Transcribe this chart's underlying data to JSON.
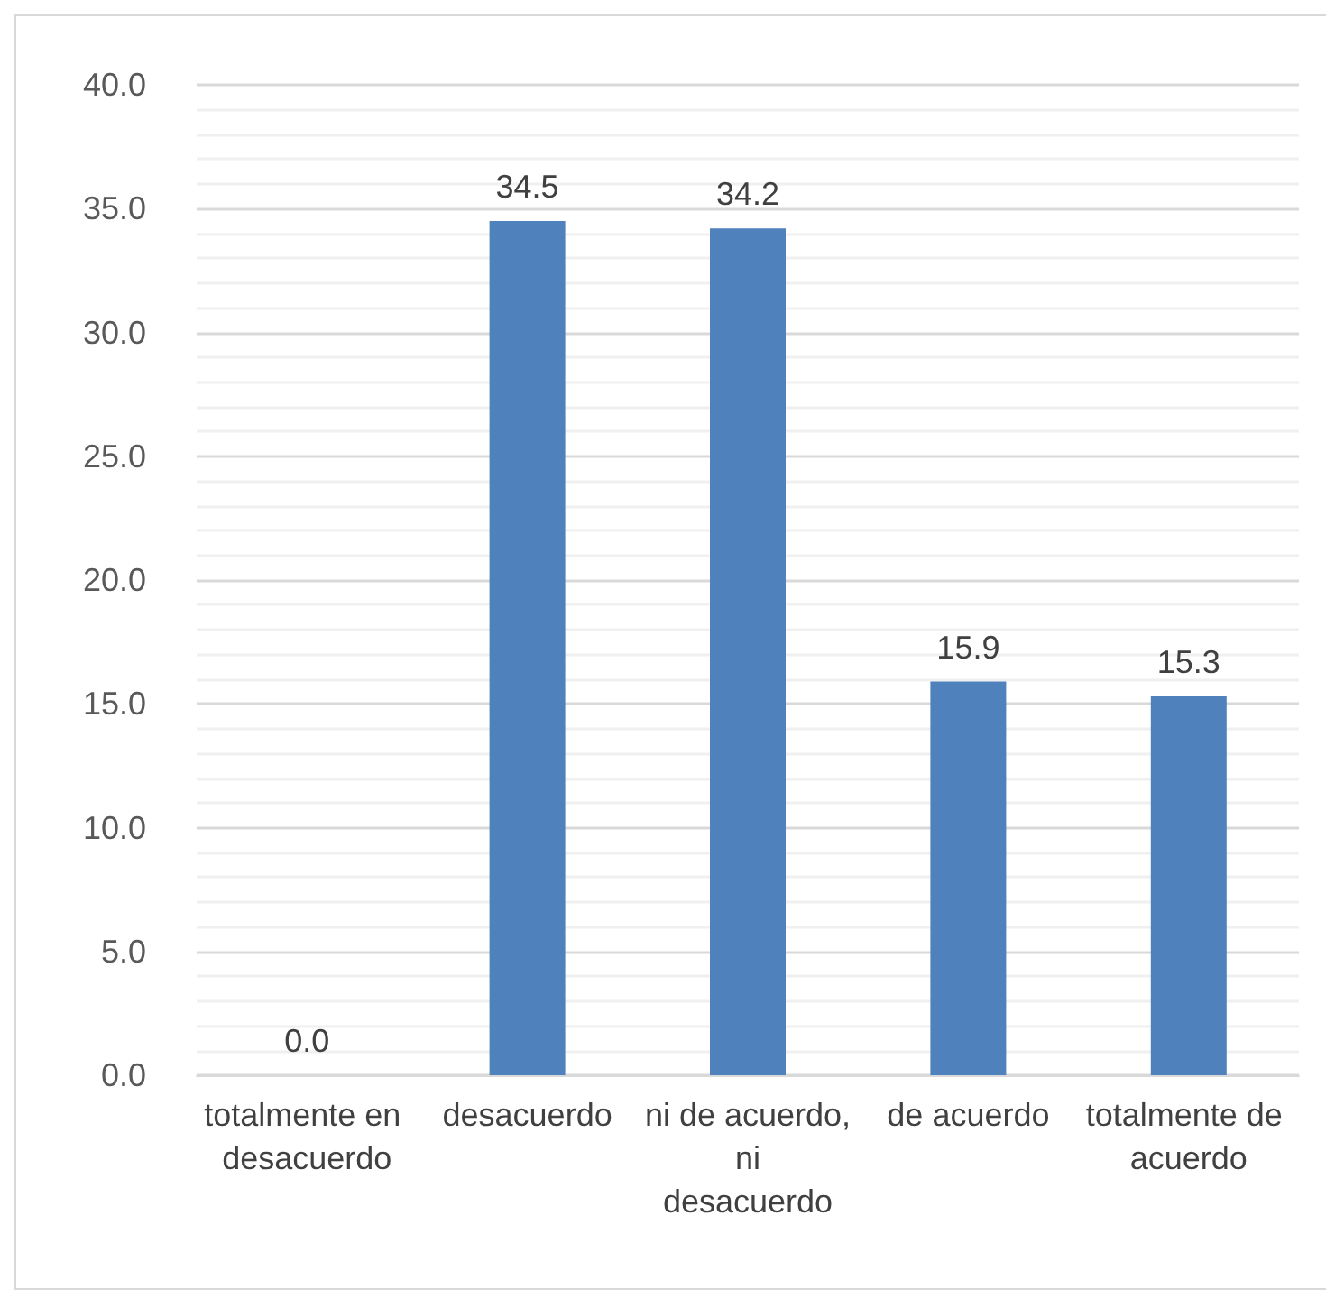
{
  "chart_data": {
    "type": "bar",
    "categories": [
      "totalmente en desacuerdo",
      "desacuerdo",
      "ni de acuerdo, ni desacuerdo",
      "de acuerdo",
      "totalmente de acuerdo"
    ],
    "values": [
      0.0,
      34.5,
      34.2,
      15.9,
      15.3
    ],
    "value_labels": [
      "0.0",
      "34.5",
      "34.2",
      "15.9",
      "15.3"
    ],
    "color": "#4f81bd",
    "ylim": [
      0,
      40
    ],
    "yticks": [
      {
        "value": 0,
        "label": "0.0"
      },
      {
        "value": 5,
        "label": "5.0"
      },
      {
        "value": 10,
        "label": "10.0"
      },
      {
        "value": 15,
        "label": "15.0"
      },
      {
        "value": 20,
        "label": "20.0"
      },
      {
        "value": 25,
        "label": "25.0"
      },
      {
        "value": 30,
        "label": "30.0"
      },
      {
        "value": 35,
        "label": "35.0"
      },
      {
        "value": 40,
        "label": "40.0"
      }
    ],
    "grid": "y"
  }
}
